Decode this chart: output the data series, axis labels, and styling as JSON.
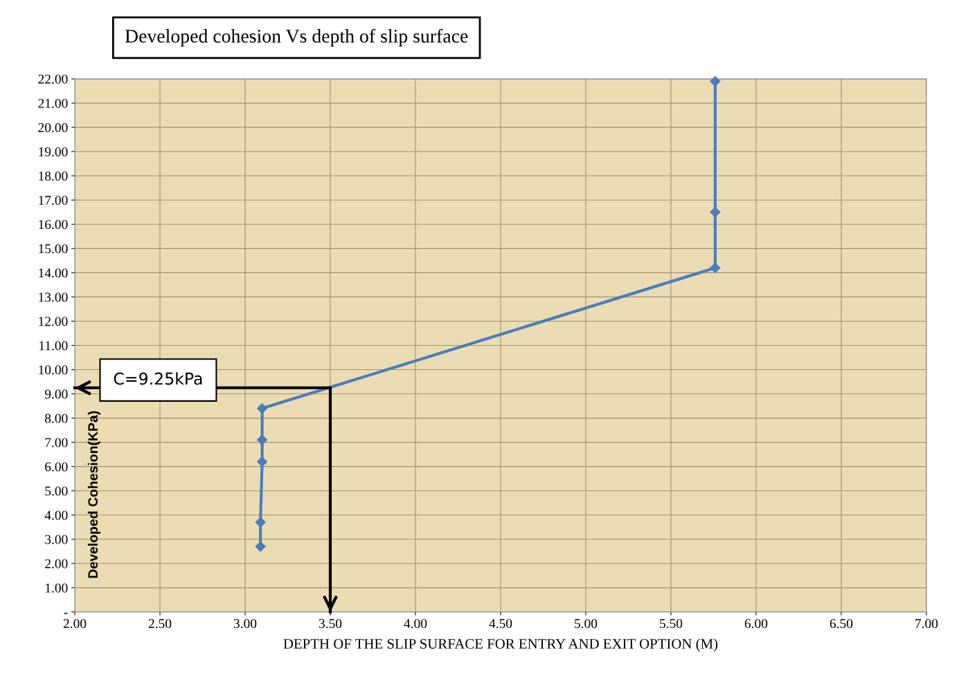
{
  "chart_data": {
    "type": "line",
    "title": "Developed cohesion Vs depth of slip surface",
    "xlabel": "DEPTH OF THE SLIP SURFACE FOR ENTRY AND EXIT OPTION (M)",
    "ylabel": "Developed Cohesion(KPa)",
    "series": [
      {
        "color": "#4a7ebb",
        "x": [
          3.09,
          3.09,
          3.1,
          3.1,
          3.1,
          5.76,
          5.76,
          5.76
        ],
        "values": [
          2.7,
          3.7,
          6.2,
          7.1,
          8.4,
          14.2,
          16.5,
          21.9
        ]
      },
      {
        "type": "line",
        "marker": "none",
        "color": "#000000",
        "x": [
          2.0,
          3.5,
          3.5
        ],
        "values": [
          9.25,
          9.25,
          0
        ]
      }
    ],
    "marker": "diamond",
    "line_style": "solid",
    "xlim": [
      2.0,
      7.0
    ],
    "xticks": [
      {
        "value": 2,
        "label": "2.00"
      },
      {
        "value": 2.5,
        "label": "2.50"
      },
      {
        "value": 3,
        "label": "3.00"
      },
      {
        "value": 3.5,
        "label": "3.50"
      },
      {
        "value": 4,
        "label": "4.00"
      },
      {
        "value": 4.5,
        "label": "4.50"
      },
      {
        "value": 5,
        "label": "5.00"
      },
      {
        "value": 5.5,
        "label": "5.50"
      },
      {
        "value": 6,
        "label": "6.00"
      },
      {
        "value": 6.5,
        "label": "6.50"
      },
      {
        "value": 7,
        "label": "7.00"
      }
    ],
    "ylim": [
      0,
      22
    ],
    "yticks": [
      {
        "value": 0,
        "label": "-"
      },
      {
        "value": 1,
        "label": "1.00"
      },
      {
        "value": 2,
        "label": "2.00"
      },
      {
        "value": 3,
        "label": "3.00"
      },
      {
        "value": 4,
        "label": "4.00"
      },
      {
        "value": 5,
        "label": "5.00"
      },
      {
        "value": 6,
        "label": "6.00"
      },
      {
        "value": 7,
        "label": "7.00"
      },
      {
        "value": 8,
        "label": "8.00"
      },
      {
        "value": 9,
        "label": "9.00"
      },
      {
        "value": 10,
        "label": "10.00"
      },
      {
        "value": 11,
        "label": "11.00"
      },
      {
        "value": 12,
        "label": "12.00"
      },
      {
        "value": 13,
        "label": "13.00"
      },
      {
        "value": 14,
        "label": "14.00"
      },
      {
        "value": 15,
        "label": "15.00"
      },
      {
        "value": 16,
        "label": "16.00"
      },
      {
        "value": 17,
        "label": "17.00"
      },
      {
        "value": 18,
        "label": "18.00"
      },
      {
        "value": 19,
        "label": "19.00"
      },
      {
        "value": 20,
        "label": "20.00"
      },
      {
        "value": 21,
        "label": "21.00"
      },
      {
        "value": 22,
        "label": "22.00"
      }
    ],
    "grid": true,
    "annotations": [
      "C=9.25kPa"
    ]
  }
}
